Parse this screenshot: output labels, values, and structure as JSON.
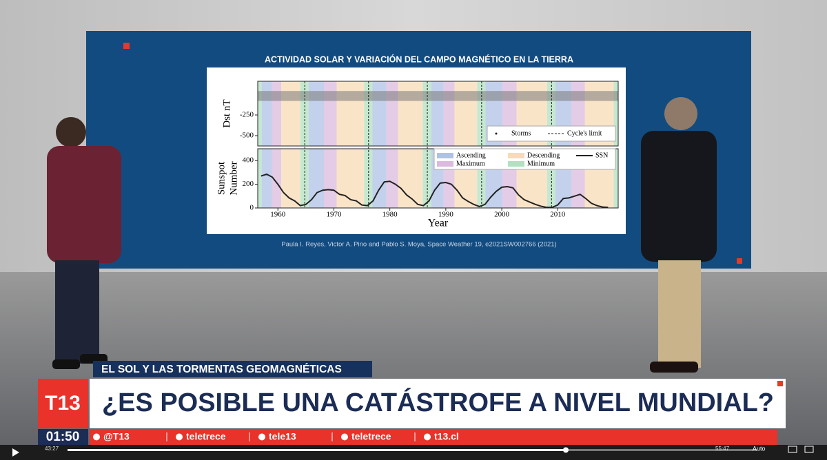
{
  "screen": {
    "title": "ACTIVIDAD SOLAR Y VARIACIÓN DEL CAMPO MAGNÉTICO EN LA TIERRA",
    "citation": "Paula I. Reyes, Victor A. Pino and Pablo S. Moya, Space Weather 19, e2021SW002766 (2021)",
    "chart": {
      "type": "line",
      "x_label": "Year",
      "top_ylabel": "Dst nT",
      "bottom_ylabel": [
        "Sunspot",
        "Number"
      ],
      "xlim": [
        1956.4,
        2020.8
      ],
      "xticks": [
        1960,
        1970,
        1980,
        1990,
        2000,
        2010
      ],
      "top_ylim": [
        -625,
        158
      ],
      "top_yticks": [
        -250,
        -500
      ],
      "bottom_ylim": [
        0,
        500
      ],
      "bottom_yticks": [
        0,
        200,
        400
      ],
      "top_legend": [
        "Storms",
        "Cycle's limit"
      ],
      "bottom_legend": [
        {
          "name": "Ascending",
          "color": "#9bb3e0"
        },
        {
          "name": "Maximum",
          "color": "#d2a9d6"
        },
        {
          "name": "Descending",
          "color": "#f6d2a4"
        },
        {
          "name": "Minimum",
          "color": "#9fd8b0"
        },
        {
          "name": "SSN",
          "color": "#222222"
        }
      ],
      "cycle_limits": [
        1964.8,
        1976.2,
        1986.7,
        1996.4,
        2008.9
      ],
      "x": [
        1957,
        1958,
        1959,
        1960,
        1961,
        1962,
        1963,
        1964,
        1965,
        1966,
        1967,
        1968,
        1969,
        1970,
        1971,
        1972,
        1973,
        1974,
        1975,
        1976,
        1977,
        1978,
        1979,
        1980,
        1981,
        1982,
        1983,
        1984,
        1985,
        1986,
        1987,
        1988,
        1989,
        1990,
        1991,
        1992,
        1993,
        1994,
        1995,
        1996,
        1997,
        1998,
        1999,
        2000,
        2001,
        2002,
        2003,
        2004,
        2005,
        2006,
        2007,
        2008,
        2009,
        2010,
        2011,
        2012,
        2013,
        2014,
        2015,
        2016,
        2017,
        2018,
        2019
      ],
      "values": [
        270,
        285,
        260,
        200,
        130,
        85,
        60,
        20,
        30,
        70,
        130,
        150,
        155,
        150,
        115,
        105,
        70,
        60,
        25,
        20,
        60,
        150,
        220,
        225,
        200,
        165,
        110,
        75,
        30,
        20,
        60,
        150,
        210,
        215,
        200,
        150,
        85,
        55,
        30,
        12,
        30,
        90,
        140,
        175,
        180,
        170,
        110,
        70,
        50,
        30,
        15,
        5,
        5,
        25,
        80,
        85,
        100,
        115,
        80,
        40,
        20,
        8,
        5
      ]
    }
  },
  "lower_third": {
    "kicker": "EL SOL Y LAS TORMENTAS GEOMAGNÉTICAS",
    "headline": "¿ES POSIBLE UNA CATÁSTROFE A NIVEL MUNDIAL?",
    "logo": "T13",
    "clock": "01:50",
    "social": [
      "@T13",
      "teletrece",
      "tele13",
      "teletrece",
      "t13.cl"
    ]
  },
  "player": {
    "elapsed": "43:27",
    "remaining": "55:47",
    "quality": "Auto"
  }
}
